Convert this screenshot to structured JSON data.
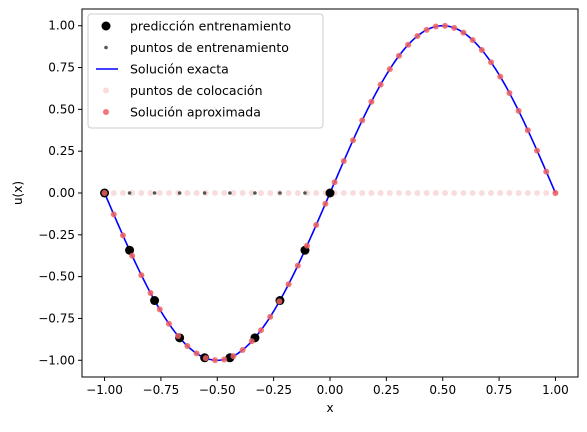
{
  "chart_data": {
    "type": "scatter",
    "title": "",
    "xlabel": "x",
    "ylabel": "u(x)",
    "xlim": [
      -1.1,
      1.1
    ],
    "ylim": [
      -1.1,
      1.1
    ],
    "xticks": [
      -1.0,
      -0.75,
      -0.5,
      -0.25,
      0.0,
      0.25,
      0.5,
      0.75,
      1.0
    ],
    "xtick_labels": [
      "−1.00",
      "−0.75",
      "−0.50",
      "−0.25",
      "0.00",
      "0.25",
      "0.50",
      "0.75",
      "1.00"
    ],
    "yticks": [
      -1.0,
      -0.75,
      -0.5,
      -0.25,
      0.0,
      0.25,
      0.5,
      0.75,
      1.0
    ],
    "ytick_labels": [
      "−1.00",
      "−0.75",
      "−0.50",
      "−0.25",
      "0.00",
      "0.25",
      "0.50",
      "0.75",
      "1.00"
    ],
    "grid": false,
    "legend_position": "top-left",
    "series": [
      {
        "name": "predicción entrenamiento",
        "kind": "scatter",
        "color": "#000000",
        "x": [
          -1.0,
          -0.889,
          -0.778,
          -0.667,
          -0.556,
          -0.444,
          -0.333,
          -0.222,
          -0.111,
          0.0
        ],
        "y": [
          0.0,
          -0.342,
          -0.643,
          -0.866,
          -0.985,
          -0.985,
          -0.866,
          -0.643,
          -0.342,
          0.0
        ]
      },
      {
        "name": "puntos de entrenamiento",
        "kind": "scatter",
        "color": "#555555",
        "x": [
          -1.0,
          -0.889,
          -0.778,
          -0.667,
          -0.556,
          -0.444,
          -0.333,
          -0.222,
          -0.111,
          0.0
        ],
        "y": [
          0,
          0,
          0,
          0,
          0,
          0,
          0,
          0,
          0,
          0
        ]
      },
      {
        "name": "Solución exacta",
        "kind": "line",
        "color": "#0000ff",
        "function": "sin(pi*x)",
        "x_range": [
          -1.0,
          1.0
        ]
      },
      {
        "name": "puntos de colocación",
        "kind": "scatter",
        "color": "#f8d7d7",
        "x_range": [
          -1.0,
          1.0
        ],
        "count": 50,
        "y_constant": 0
      },
      {
        "name": "Solución aproximada",
        "kind": "scatter",
        "color": "#f06060",
        "x_range": [
          -1.0,
          1.0
        ],
        "count": 50,
        "function": "sin(pi*x)"
      }
    ]
  }
}
